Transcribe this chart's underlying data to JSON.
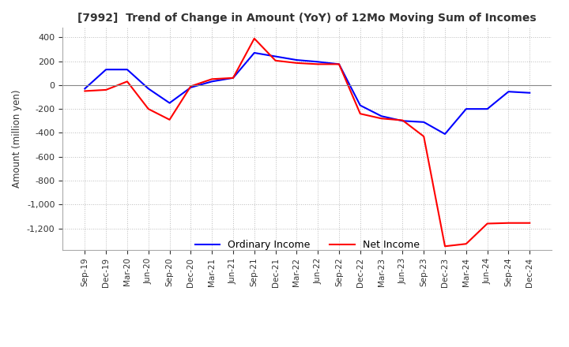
{
  "title": "[7992]  Trend of Change in Amount (YoY) of 12Mo Moving Sum of Incomes",
  "ylabel": "Amount (million yen)",
  "ylim": [
    -1380,
    480
  ],
  "yticks": [
    400,
    200,
    0,
    -200,
    -400,
    -600,
    -800,
    -1000,
    -1200
  ],
  "x_labels": [
    "Sep-19",
    "Dec-19",
    "Mar-20",
    "Jun-20",
    "Sep-20",
    "Dec-20",
    "Mar-21",
    "Jun-21",
    "Sep-21",
    "Dec-21",
    "Mar-22",
    "Jun-22",
    "Sep-22",
    "Dec-22",
    "Mar-23",
    "Jun-23",
    "Sep-23",
    "Dec-23",
    "Mar-24",
    "Jun-24",
    "Sep-24",
    "Dec-24"
  ],
  "ordinary_income": [
    -30,
    130,
    130,
    -30,
    -150,
    -20,
    30,
    60,
    270,
    240,
    210,
    195,
    175,
    -170,
    -260,
    -300,
    -310,
    -410,
    -200,
    -200,
    -55,
    -65
  ],
  "net_income": [
    -50,
    -40,
    30,
    -200,
    -290,
    -10,
    50,
    60,
    390,
    205,
    185,
    175,
    175,
    -240,
    -280,
    -295,
    -430,
    -1350,
    -1330,
    -1160,
    -1155,
    -1155
  ],
  "ordinary_color": "#0000ff",
  "net_color": "#ff0000",
  "grid_color": "#bbbbbb",
  "background_color": "#ffffff",
  "zero_line_color": "#888888"
}
